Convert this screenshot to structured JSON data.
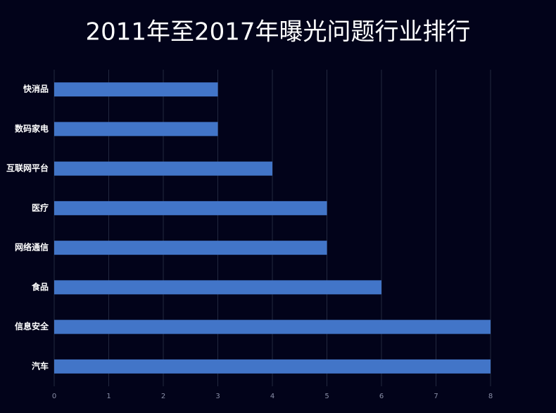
{
  "chart_data": {
    "type": "bar",
    "orientation": "horizontal",
    "title": "2011年至2017年曝光问题行业排行",
    "categories": [
      "快消品",
      "数码家电",
      "互联网平台",
      "医疗",
      "网络通信",
      "食品",
      "信息安全",
      "汽车"
    ],
    "values": [
      3,
      3,
      4,
      5,
      5,
      6,
      8,
      8
    ],
    "color": "#4275c8",
    "xlim": [
      0,
      8
    ],
    "xticks": [
      0,
      1,
      2,
      3,
      4,
      5,
      6,
      7,
      8
    ],
    "grid": true
  }
}
